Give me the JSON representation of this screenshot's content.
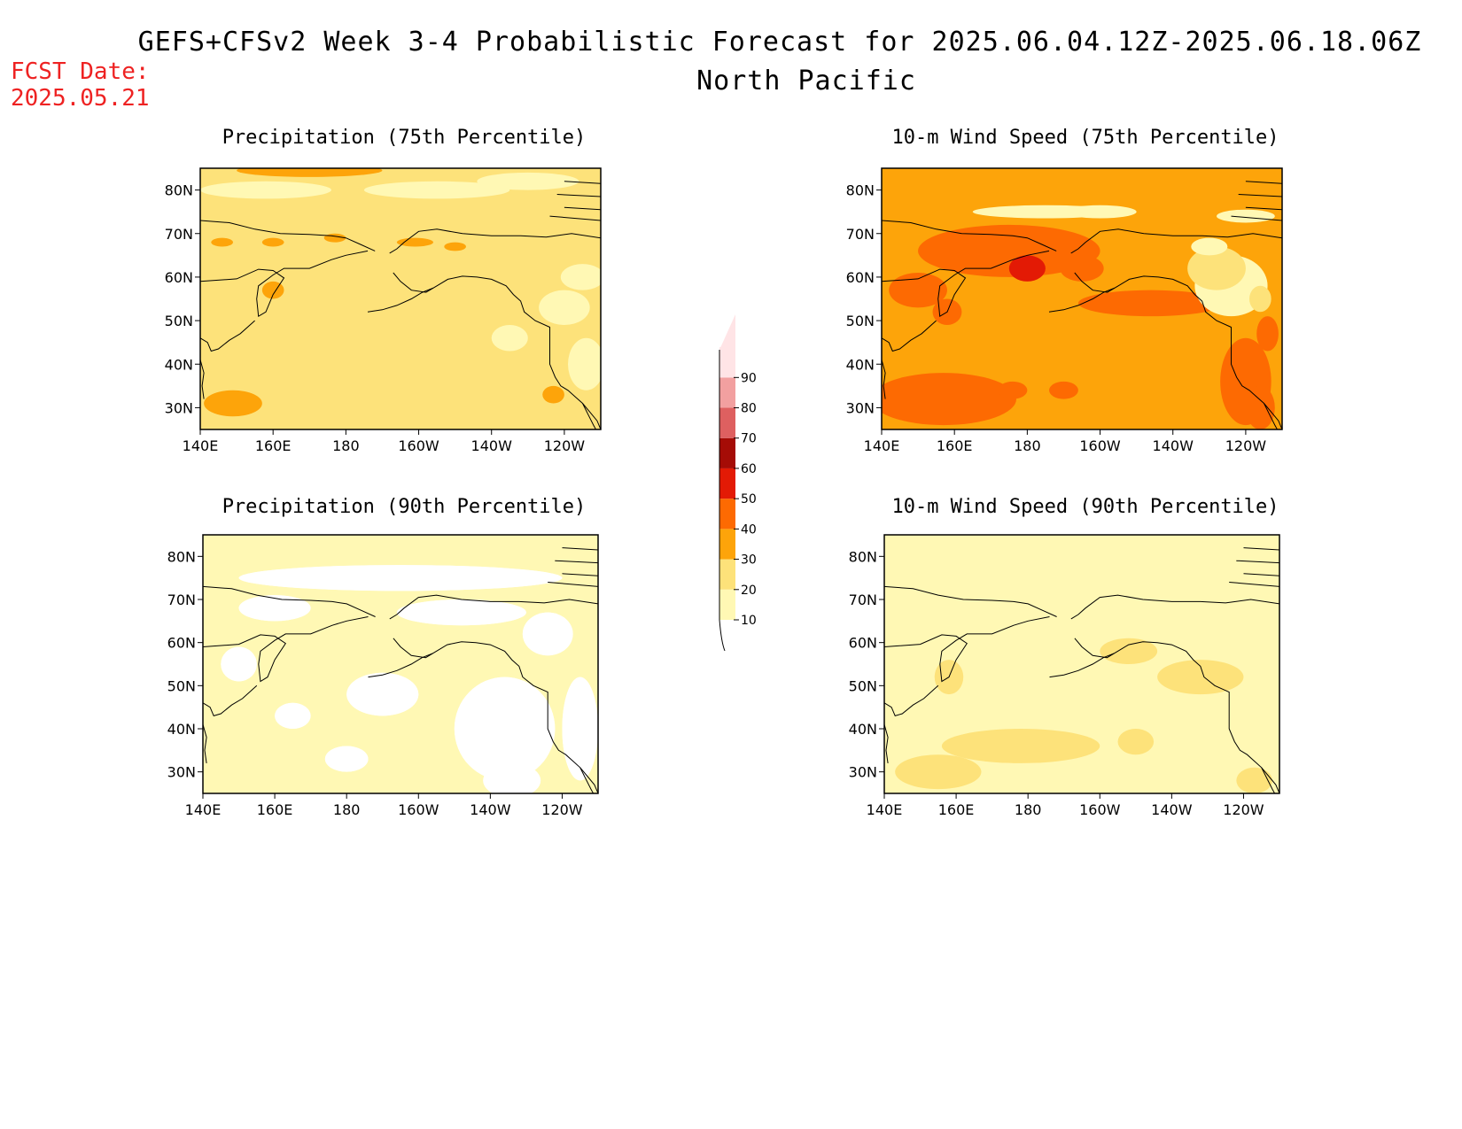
{
  "header": {
    "title": "GEFS+CFSv2 Week 3-4 Probabilistic Forecast for 2025.06.04.12Z-2025.06.18.06Z",
    "subtitle": "North Pacific",
    "fcst_label": "FCST Date:",
    "fcst_date": "2025.05.21"
  },
  "colors": {
    "c10": "#fff8b4",
    "c20": "#fde27a",
    "c30": "#fda40a",
    "c40": "#fd6a02",
    "c50": "#e31a05",
    "c60": "#a50c06",
    "c70": "#de6060",
    "c80": "#f2a0a0",
    "c90": "#ffe4e6",
    "land_outline": "#000000"
  },
  "chart_data": [
    {
      "type": "map",
      "title": "Precipitation (75th Percentile)",
      "lon_ticks": [
        "140E",
        "160E",
        "180",
        "160W",
        "140W",
        "120W"
      ],
      "lat_ticks": [
        "80N",
        "70N",
        "60N",
        "50N",
        "40N",
        "30N"
      ],
      "lon_range": [
        140,
        250
      ],
      "lat_range": [
        25,
        85
      ],
      "background_level": 20
    },
    {
      "type": "map",
      "title": "10-m Wind Speed (75th Percentile)",
      "lon_ticks": [
        "140E",
        "160E",
        "180",
        "160W",
        "140W",
        "120W"
      ],
      "lat_ticks": [
        "80N",
        "70N",
        "60N",
        "50N",
        "40N",
        "30N"
      ],
      "lon_range": [
        140,
        250
      ],
      "lat_range": [
        25,
        85
      ],
      "background_level": 30
    },
    {
      "type": "map",
      "title": "Precipitation (90th Percentile)",
      "lon_ticks": [
        "140E",
        "160E",
        "180",
        "160W",
        "140W",
        "120W"
      ],
      "lat_ticks": [
        "80N",
        "70N",
        "60N",
        "50N",
        "40N",
        "30N"
      ],
      "lon_range": [
        140,
        250
      ],
      "lat_range": [
        25,
        85
      ],
      "background_level": 10
    },
    {
      "type": "map",
      "title": "10-m Wind Speed (90th Percentile)",
      "lon_ticks": [
        "140E",
        "160E",
        "180",
        "160W",
        "140W",
        "120W"
      ],
      "lat_ticks": [
        "80N",
        "70N",
        "60N",
        "50N",
        "40N",
        "30N"
      ],
      "lon_range": [
        140,
        250
      ],
      "lat_range": [
        25,
        85
      ],
      "background_level": 10
    }
  ],
  "colorbar": {
    "levels": [
      "10",
      "20",
      "30",
      "40",
      "50",
      "60",
      "70",
      "80",
      "90"
    ]
  }
}
